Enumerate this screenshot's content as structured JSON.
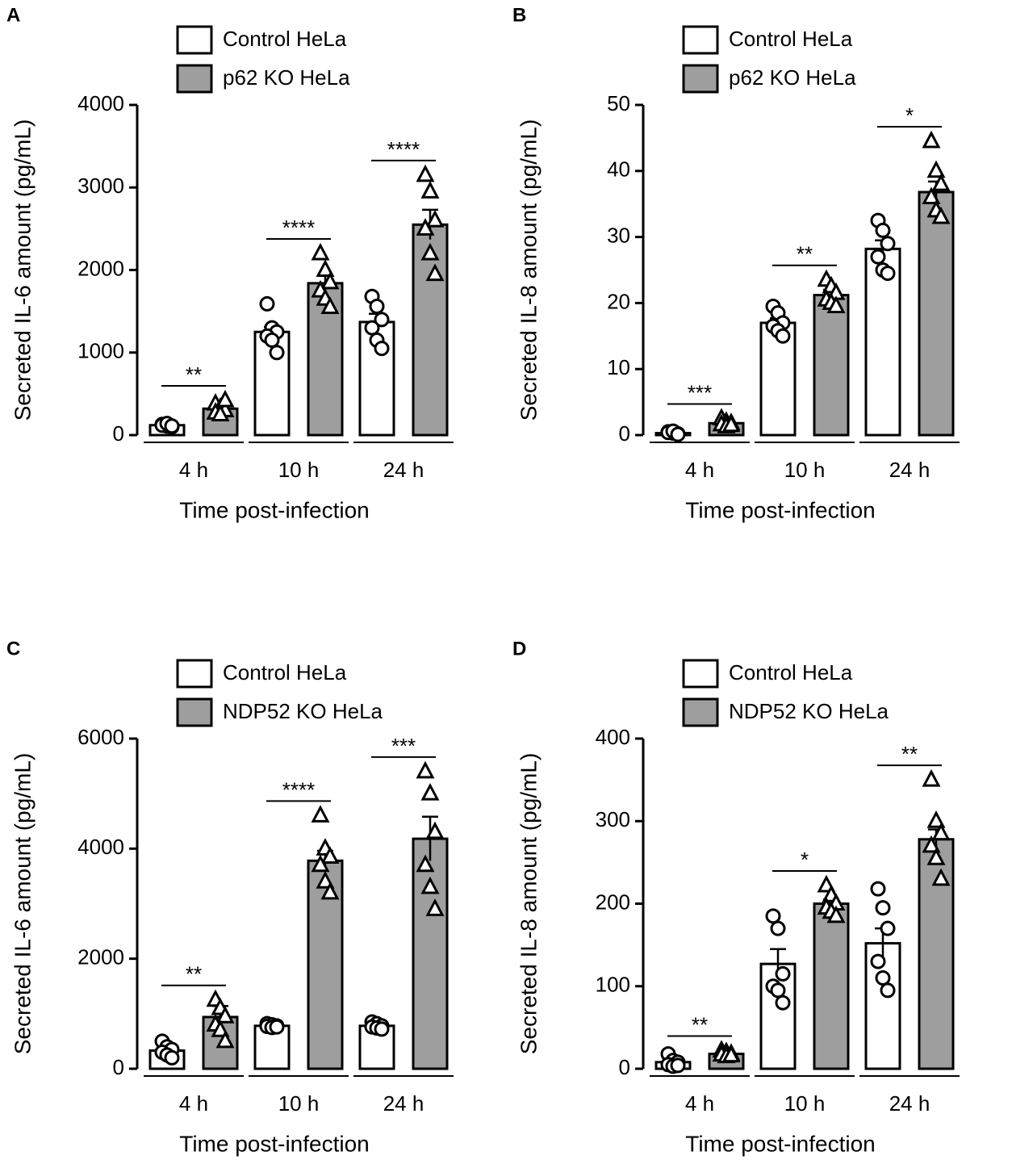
{
  "chart_data": [
    {
      "type": "bar",
      "title": "A",
      "ylabel": "Secreted IL-6 amount (pg/mL)",
      "xlabel": "Time post-infection",
      "categories": [
        "4 h",
        "10 h",
        "24 h"
      ],
      "ylim": [
        0,
        4000
      ],
      "yticks": [
        0,
        1000,
        2000,
        3000,
        4000
      ],
      "annotations": [
        "**",
        "****",
        "****"
      ],
      "series": [
        {
          "name": "Control HeLa",
          "color": "#ffffff",
          "values": [
            120,
            1250,
            1370
          ],
          "errors": [
            20,
            60,
            100
          ],
          "points": [
            [
              130,
              110,
              100,
              120,
              140,
              110
            ],
            [
              1590,
              1300,
              1250,
              1200,
              1150,
              1000
            ],
            [
              1680,
              1560,
              1400,
              1300,
              1150,
              1050
            ]
          ]
        },
        {
          "name": "p62 KO HeLa",
          "color": "#9e9e9e",
          "values": [
            320,
            1840,
            2550
          ],
          "errors": [
            40,
            90,
            180
          ],
          "points": [
            [
              380,
              330,
              300,
              270,
              250,
              420
            ],
            [
              2200,
              2000,
              1850,
              1750,
              1650,
              1550
            ],
            [
              3150,
              2950,
              2600,
              2500,
              2200,
              1950
            ]
          ]
        }
      ]
    },
    {
      "type": "bar",
      "title": "B",
      "ylabel": "Secreted IL-8 amount (pg/mL)",
      "xlabel": "Time post-infection",
      "categories": [
        "4 h",
        "10 h",
        "24 h"
      ],
      "ylim": [
        0,
        50
      ],
      "yticks": [
        0,
        10,
        20,
        30,
        40,
        50
      ],
      "annotations": [
        "***",
        "**",
        "*"
      ],
      "series": [
        {
          "name": "Control HeLa",
          "color": "#ffffff",
          "values": [
            0.3,
            17,
            28.2
          ],
          "errors": [
            0.1,
            0.7,
            1.3
          ],
          "points": [
            [
              0.5,
              0.3,
              0.2,
              0.4,
              0.6,
              0.1
            ],
            [
              19.5,
              18.5,
              17,
              16.5,
              15.8,
              15
            ],
            [
              32.5,
              31,
              29,
              27,
              25,
              24.5
            ]
          ]
        },
        {
          "name": "p62 KO HeLa",
          "color": "#9e9e9e",
          "values": [
            1.8,
            21.2,
            36.8
          ],
          "errors": [
            0.2,
            0.8,
            1.6
          ],
          "points": [
            [
              2.5,
              2,
              1.8,
              1.6,
              1.3,
              1.5
            ],
            [
              23.5,
              22.5,
              21.5,
              20.5,
              20,
              19.5
            ],
            [
              44.5,
              40,
              38,
              36,
              34,
              33
            ]
          ]
        }
      ]
    },
    {
      "type": "bar",
      "title": "C",
      "ylabel": "Secreted IL-6 amount (pg/mL)",
      "xlabel": "Time post-infection",
      "categories": [
        "4 h",
        "10 h",
        "24 h"
      ],
      "ylim": [
        0,
        6000
      ],
      "yticks": [
        0,
        2000,
        4000,
        6000
      ],
      "annotations": [
        "**",
        "****",
        "***"
      ],
      "series": [
        {
          "name": "Control HeLa",
          "color": "#ffffff",
          "values": [
            330,
            780,
            780
          ],
          "errors": [
            80,
            30,
            50
          ],
          "points": [
            [
              500,
              400,
              350,
              300,
              250,
              200
            ],
            [
              820,
              800,
              780,
              770,
              750,
              760
            ],
            [
              850,
              820,
              780,
              760,
              740,
              720
            ]
          ]
        },
        {
          "name": "NDP52 KO HeLa",
          "color": "#9e9e9e",
          "values": [
            940,
            3780,
            4180
          ],
          "errors": [
            200,
            180,
            400
          ],
          "points": [
            [
              1250,
              1100,
              950,
              800,
              700,
              500
            ],
            [
              4600,
              4000,
              3850,
              3700,
              3400,
              3200
            ],
            [
              5400,
              5000,
              4300,
              3700,
              3300,
              2900
            ]
          ]
        }
      ]
    },
    {
      "type": "bar",
      "title": "D",
      "ylabel": "Secreted IL-8 amount (pg/mL)",
      "xlabel": "Time post-infection",
      "categories": [
        "4 h",
        "10 h",
        "24 h"
      ],
      "ylim": [
        0,
        400
      ],
      "yticks": [
        0,
        100,
        200,
        300,
        400
      ],
      "annotations": [
        "**",
        "*",
        "**"
      ],
      "series": [
        {
          "name": "Control HeLa",
          "color": "#ffffff",
          "values": [
            8,
            127,
            152
          ],
          "errors": [
            3,
            18,
            18
          ],
          "points": [
            [
              18,
              10,
              8,
              5,
              3,
              4
            ],
            [
              185,
              170,
              115,
              100,
              95,
              80
            ],
            [
              218,
              195,
              170,
              130,
              110,
              95
            ]
          ]
        },
        {
          "name": "NDP52 KO HeLa",
          "color": "#9e9e9e",
          "values": [
            18,
            200,
            278
          ],
          "errors": [
            3,
            5,
            12
          ],
          "points": [
            [
              22,
              20,
              18,
              17,
              15,
              16
            ],
            [
              222,
              210,
              200,
              195,
              190,
              185
            ],
            [
              350,
              300,
              285,
              270,
              255,
              230
            ]
          ]
        }
      ]
    }
  ]
}
